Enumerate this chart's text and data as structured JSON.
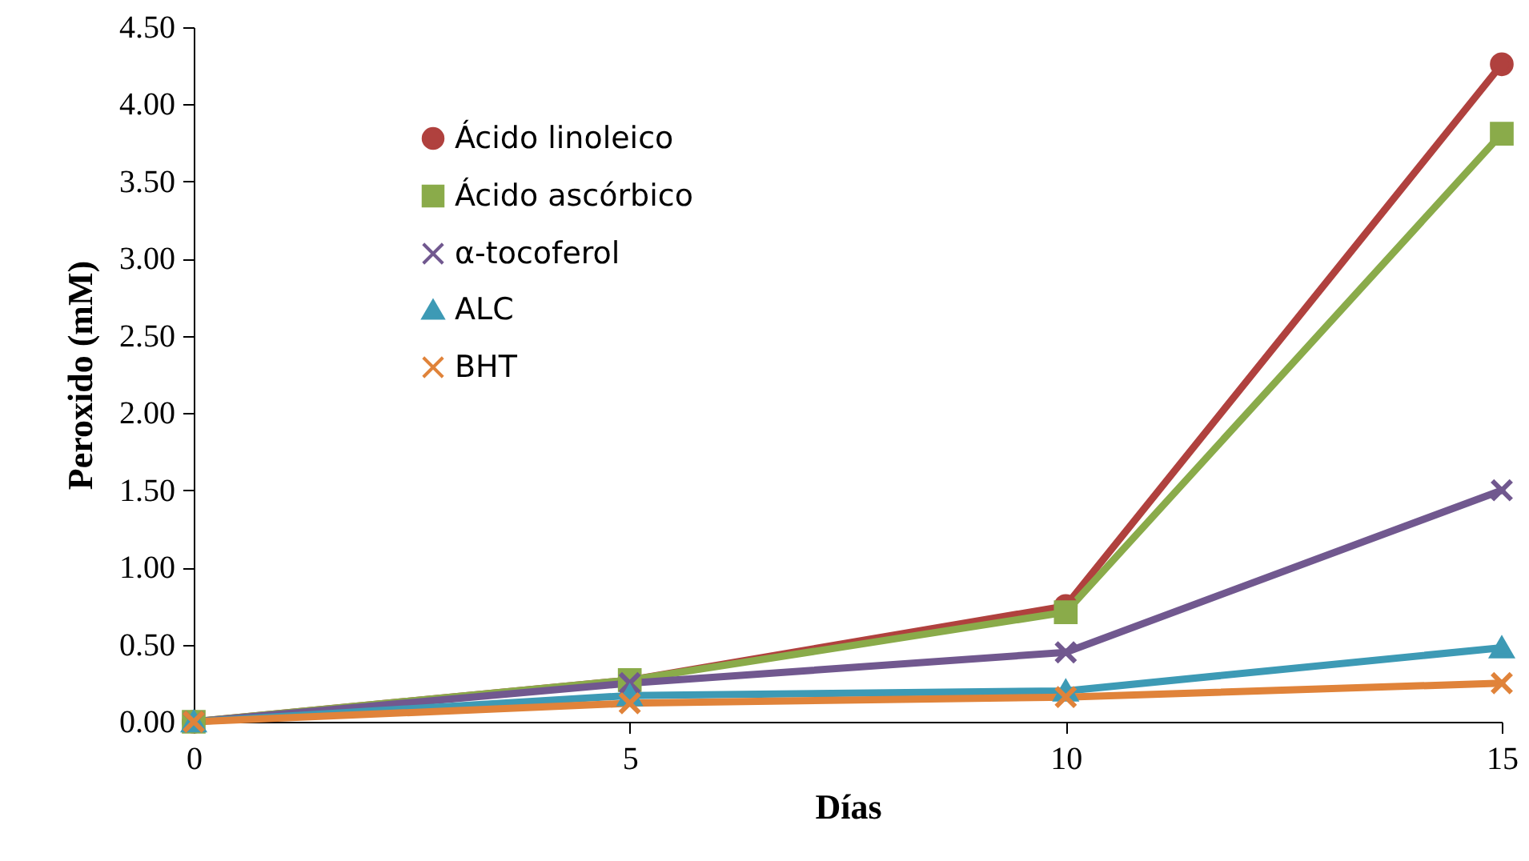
{
  "chart_data": {
    "type": "line",
    "xlabel": "Días",
    "ylabel": "Peroxido (mM)",
    "x": [
      0,
      5,
      10,
      15
    ],
    "xlim": [
      0,
      15
    ],
    "xticks": [
      0,
      5,
      10,
      15
    ],
    "ylim": [
      0,
      4.5
    ],
    "yticks": [
      {
        "value": 0,
        "label": "0.00"
      },
      {
        "value": 0.5,
        "label": "0.50"
      },
      {
        "value": 1,
        "label": "1.00"
      },
      {
        "value": 1.5,
        "label": "1.50"
      },
      {
        "value": 2,
        "label": "2.00"
      },
      {
        "value": 2.5,
        "label": "2.50"
      },
      {
        "value": 3,
        "label": "3.00"
      },
      {
        "value": 3.5,
        "label": "3.50"
      },
      {
        "value": 4,
        "label": "4.00"
      },
      {
        "value": 4.5,
        "label": "4.50"
      }
    ],
    "grid": false,
    "legend": "top left",
    "line_style": "solid",
    "series": [
      {
        "name": "Ácido linoleico",
        "color": "#b0413e",
        "marker": "circle",
        "values": [
          0,
          0.27,
          0.75,
          4.26
        ]
      },
      {
        "name": "Ácido ascórbico",
        "color": "#8aab4a",
        "marker": "square",
        "values": [
          0,
          0.27,
          0.71,
          3.81
        ]
      },
      {
        "name": "α-tocoferol",
        "color": "#71588f",
        "marker": "cross",
        "values": [
          0,
          0.25,
          0.45,
          1.5
        ]
      },
      {
        "name": "ALC",
        "color": "#3d9ab5",
        "marker": "triangle",
        "values": [
          0,
          0.17,
          0.2,
          0.48
        ]
      },
      {
        "name": "BHT",
        "color": "#e0833a",
        "marker": "cross",
        "values": [
          0,
          0.12,
          0.16,
          0.25
        ]
      }
    ]
  }
}
